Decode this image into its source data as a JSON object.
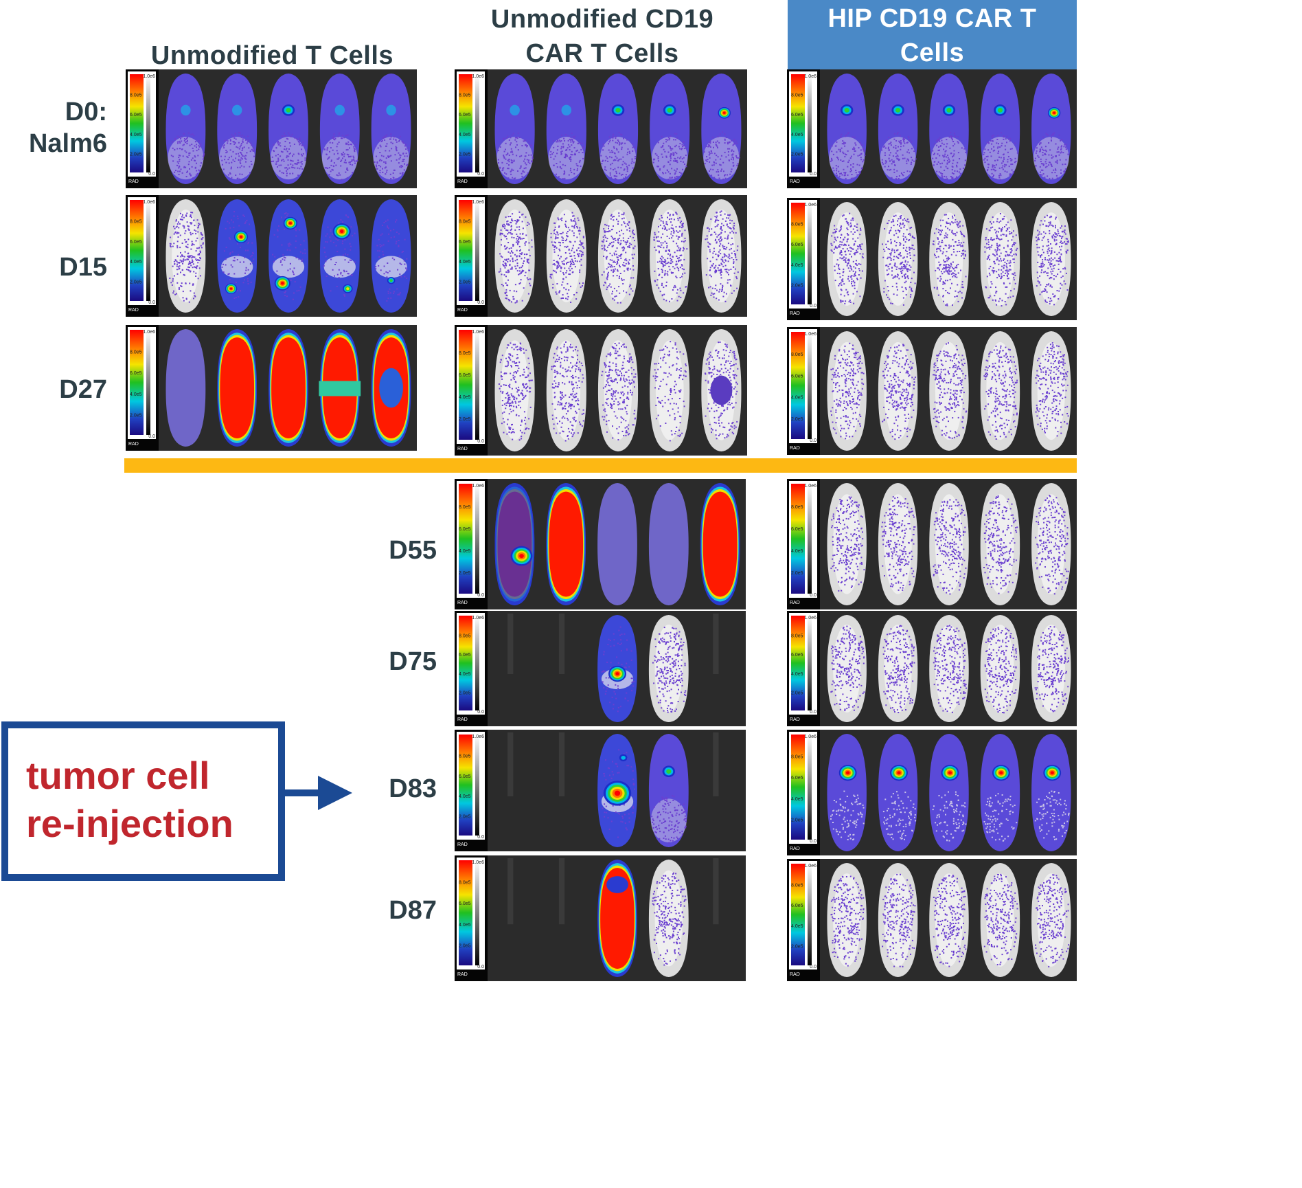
{
  "columns": {
    "unmodified_t": "Unmodified T Cells",
    "unmodified_car_line1": "Unmodified CD19",
    "unmodified_car_line2": "CAR T Cells",
    "hip_car_line1": "HIP CD19 CAR T",
    "hip_car_line2": "Cells"
  },
  "rows": {
    "d0_line1": "D0:",
    "d0_line2": "Nalm6",
    "d15": "D15",
    "d27": "D27",
    "d55": "D55",
    "d75": "D75",
    "d83": "D83",
    "d87": "D87"
  },
  "callout": {
    "text": "tumor cell\nre-injection"
  },
  "colorbar": {
    "max": "1.0e6",
    "ticks": [
      "8.0e5",
      "6.0e5",
      "4.0e5",
      "2.0e5"
    ],
    "min": "0.0",
    "unit": "RAD"
  },
  "colors": {
    "title_text": "#2c3e46",
    "hip_header_bg": "#4a89c7",
    "divider": "#fdb813",
    "callout_border": "#1b4a94",
    "callout_text": "#c0262d"
  }
}
